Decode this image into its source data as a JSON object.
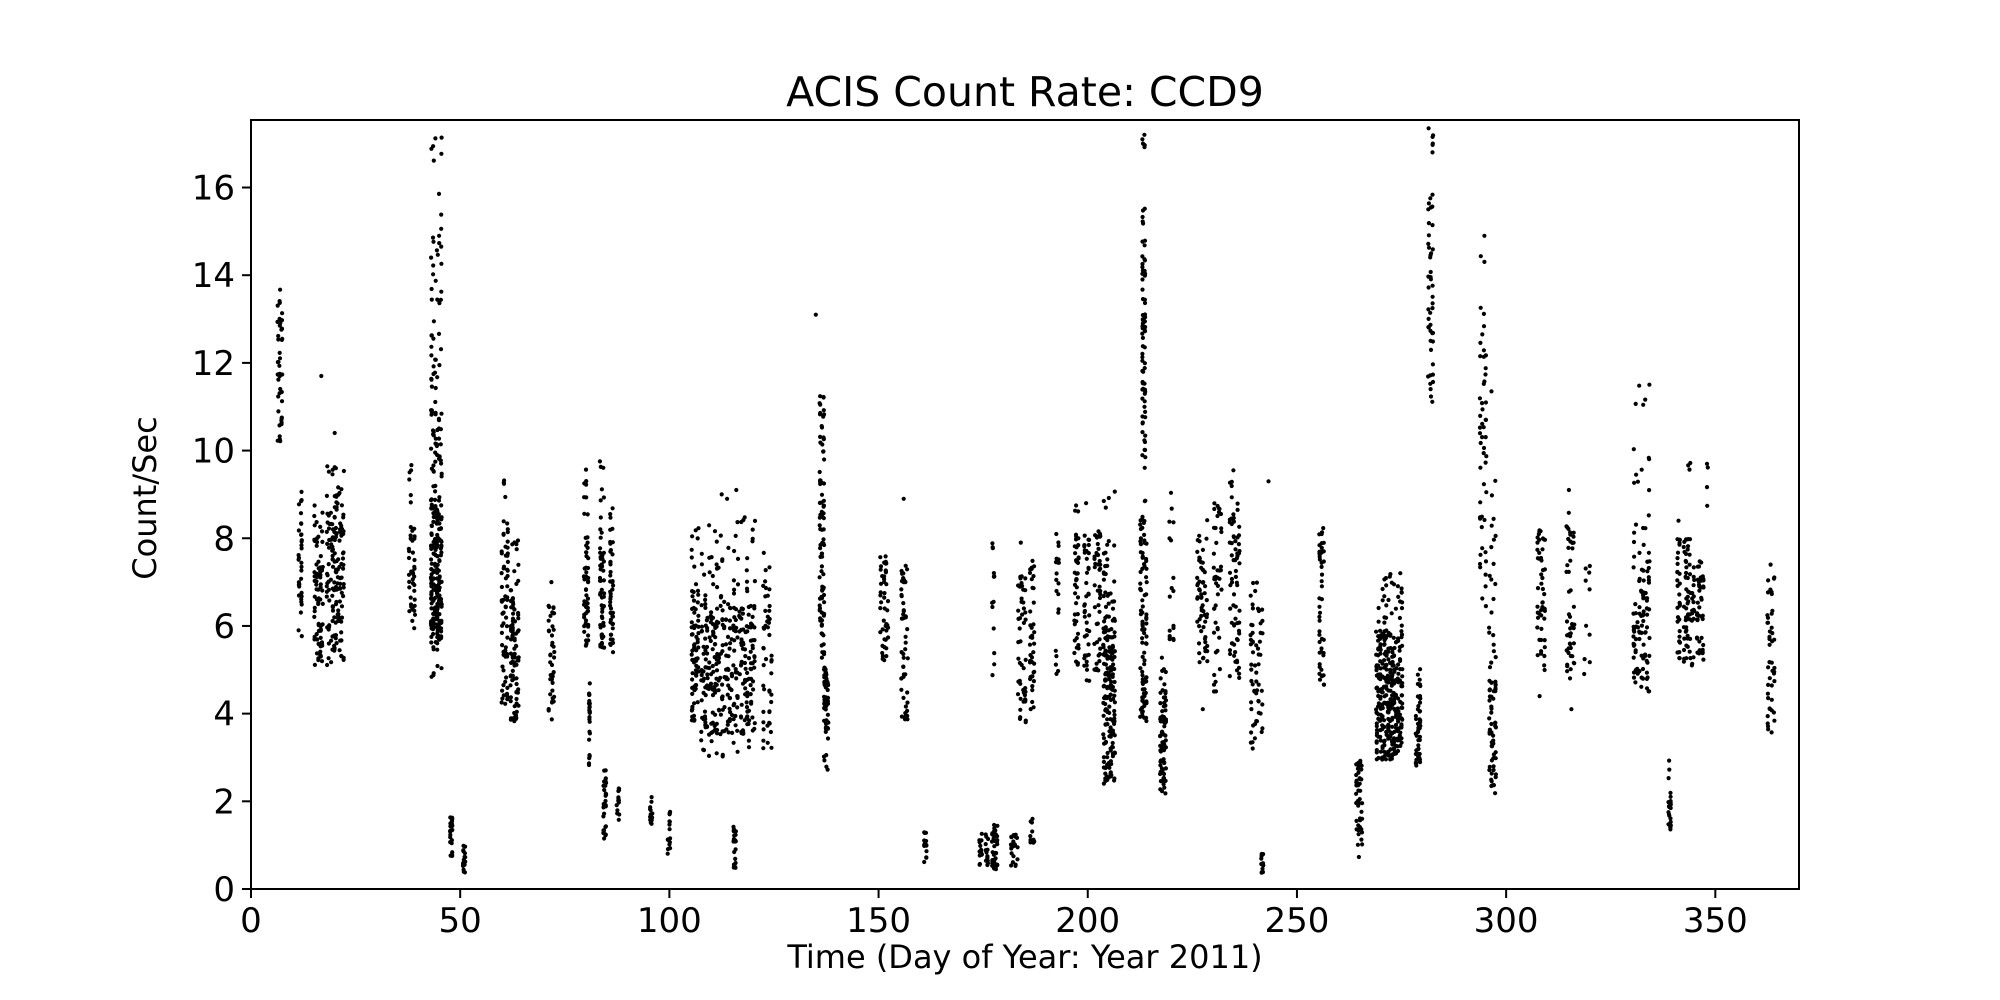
{
  "chart_data": {
    "type": "scatter",
    "title": "ACIS Count Rate: CCD9",
    "xlabel": "Time (Day of Year: Year 2011)",
    "ylabel": "Count/Sec",
    "xlim": [
      0,
      370
    ],
    "ylim": [
      0,
      17.54
    ],
    "xticks": [
      0,
      50,
      100,
      150,
      200,
      250,
      300,
      350
    ],
    "yticks": [
      0,
      2,
      4,
      6,
      8,
      10,
      12,
      14,
      16
    ],
    "grid": false,
    "legend": null,
    "marker_color": "#000000",
    "background_color": "#ffffff",
    "clusters": [
      {
        "d": [
          6.2,
          7.6
        ],
        "v": [
          [
            10.2,
            13.0,
            40
          ],
          [
            13.0,
            13.7,
            6
          ]
        ]
      },
      {
        "d": [
          11.2,
          12.3
        ],
        "v": [
          [
            5.6,
            8.4,
            30
          ],
          [
            8.5,
            9.2,
            5
          ]
        ]
      },
      {
        "d": [
          15.0,
          17.3
        ],
        "v": [
          [
            5.1,
            8.0,
            70
          ],
          [
            8.0,
            8.8,
            8
          ]
        ]
      },
      {
        "d": [
          18.0,
          22.3
        ],
        "v": [
          [
            5.1,
            9.0,
            150
          ],
          [
            9.0,
            9.7,
            10
          ]
        ]
      },
      {
        "d": [
          37.6,
          39.3
        ],
        "v": [
          [
            5.9,
            8.3,
            40
          ],
          [
            8.6,
            9.8,
            6
          ]
        ]
      },
      {
        "d": [
          42.9,
          45.7
        ],
        "v": [
          [
            5.6,
            8.7,
            190
          ],
          [
            8.7,
            10.5,
            40
          ],
          [
            10.5,
            13.0,
            30
          ],
          [
            13.0,
            16.1,
            22
          ],
          [
            16.4,
            17.3,
            6
          ],
          [
            4.8,
            5.6,
            8
          ]
        ]
      },
      {
        "d": [
          47.5,
          48.2
        ],
        "v": [
          [
            0.75,
            1.65,
            24
          ]
        ]
      },
      {
        "d": [
          50.6,
          51.3
        ],
        "v": [
          [
            0.35,
            1.0,
            20
          ]
        ]
      },
      {
        "d": [
          59.8,
          61.5
        ],
        "v": [
          [
            4.1,
            7.8,
            55
          ],
          [
            7.8,
            8.6,
            8
          ],
          [
            8.9,
            9.6,
            4
          ]
        ]
      },
      {
        "d": [
          61.9,
          64.1
        ],
        "v": [
          [
            3.8,
            7.0,
            85
          ],
          [
            7.0,
            8.2,
            8
          ]
        ]
      },
      {
        "d": [
          71.0,
          72.6
        ],
        "v": [
          [
            3.8,
            6.6,
            40
          ]
        ]
      },
      {
        "d": [
          79.5,
          80.7
        ],
        "v": [
          [
            5.5,
            8.0,
            45
          ],
          [
            8.0,
            9.6,
            10
          ]
        ]
      },
      {
        "d": [
          80.6,
          81.2
        ],
        "v": [
          [
            2.8,
            4.7,
            25
          ]
        ]
      },
      {
        "d": [
          83.3,
          84.5
        ],
        "v": [
          [
            5.5,
            7.8,
            45
          ],
          [
            7.8,
            9.8,
            10
          ]
        ]
      },
      {
        "d": [
          84.1,
          85.0
        ],
        "v": [
          [
            1.1,
            2.75,
            30
          ]
        ]
      },
      {
        "d": [
          85.7,
          86.7
        ],
        "v": [
          [
            5.4,
            8.0,
            40
          ],
          [
            8.0,
            8.7,
            5
          ]
        ]
      },
      {
        "d": [
          87.3,
          88.1
        ],
        "v": [
          [
            1.45,
            2.3,
            14
          ]
        ]
      },
      {
        "d": [
          95.3,
          96.0
        ],
        "v": [
          [
            1.05,
            2.1,
            14
          ]
        ]
      },
      {
        "d": [
          99.5,
          100.3
        ],
        "v": [
          [
            0.6,
            1.8,
            16
          ]
        ]
      },
      {
        "d": [
          105.2,
          107.1
        ],
        "v": [
          [
            3.8,
            6.9,
            65
          ],
          [
            6.9,
            8.3,
            8
          ]
        ]
      },
      {
        "d": [
          107.5,
          120.6
        ],
        "v": [
          [
            3.5,
            6.5,
            300
          ],
          [
            6.5,
            8.6,
            45
          ],
          [
            3.0,
            3.5,
            12
          ]
        ]
      },
      {
        "d": [
          115.2,
          116.0
        ],
        "v": [
          [
            0.45,
            1.65,
            20
          ]
        ]
      },
      {
        "d": [
          122.3,
          124.6
        ],
        "v": [
          [
            3.0,
            7.0,
            45
          ],
          [
            7.0,
            7.7,
            4
          ]
        ]
      },
      {
        "d": [
          135.8,
          137.1
        ],
        "v": [
          [
            5.2,
            11.3,
            90
          ]
        ]
      },
      {
        "d": [
          136.8,
          138.1
        ],
        "v": [
          [
            3.6,
            5.1,
            55
          ],
          [
            2.4,
            3.6,
            7
          ]
        ]
      },
      {
        "d": [
          150.3,
          152.4
        ],
        "v": [
          [
            5.2,
            7.6,
            45
          ]
        ]
      },
      {
        "d": [
          155.3,
          157.1
        ],
        "v": [
          [
            3.7,
            7.4,
            50
          ]
        ]
      },
      {
        "d": [
          160.8,
          161.6
        ],
        "v": [
          [
            0.6,
            1.3,
            16
          ]
        ]
      },
      {
        "d": [
          174.0,
          174.8
        ],
        "v": [
          [
            0.55,
            1.35,
            14
          ]
        ]
      },
      {
        "d": [
          175.5,
          176.3
        ],
        "v": [
          [
            0.5,
            1.3,
            14
          ]
        ]
      },
      {
        "d": [
          177.0,
          178.6
        ],
        "v": [
          [
            0.45,
            1.5,
            40
          ]
        ]
      },
      {
        "d": [
          177.0,
          177.8
        ],
        "v": [
          [
            4.6,
            8.1,
            14
          ]
        ]
      },
      {
        "d": [
          181.5,
          183.4
        ],
        "v": [
          [
            0.5,
            1.25,
            22
          ]
        ]
      },
      {
        "d": [
          183.2,
          185.3
        ],
        "v": [
          [
            3.8,
            7.2,
            50
          ]
        ]
      },
      {
        "d": [
          186.1,
          187.3
        ],
        "v": [
          [
            4.0,
            7.5,
            40
          ],
          [
            1.0,
            1.62,
            12
          ]
        ]
      },
      {
        "d": [
          192.2,
          193.3
        ],
        "v": [
          [
            4.7,
            8.3,
            20
          ]
        ]
      },
      {
        "d": [
          196.7,
          197.9
        ],
        "v": [
          [
            5.1,
            8.2,
            40
          ],
          [
            8.4,
            8.8,
            3
          ]
        ]
      },
      {
        "d": [
          199.0,
          200.5
        ],
        "v": [
          [
            4.7,
            8.1,
            40
          ]
        ]
      },
      {
        "d": [
          201.5,
          203.1
        ],
        "v": [
          [
            4.9,
            8.2,
            45
          ]
        ]
      },
      {
        "d": [
          203.6,
          206.6
        ],
        "v": [
          [
            3.3,
            6.2,
            130
          ],
          [
            2.4,
            3.3,
            35
          ],
          [
            6.2,
            8.0,
            25
          ],
          [
            8.7,
            9.2,
            4
          ]
        ]
      },
      {
        "d": [
          212.4,
          214.2
        ],
        "v": [
          [
            3.7,
            8.6,
            90
          ]
        ]
      },
      {
        "d": [
          212.9,
          213.9
        ],
        "v": [
          [
            10.1,
            14.9,
            65
          ],
          [
            15.1,
            15.8,
            5
          ],
          [
            16.6,
            17.3,
            5
          ],
          [
            8.8,
            10.1,
            7
          ]
        ]
      },
      {
        "d": [
          217.2,
          218.8
        ],
        "v": [
          [
            2.4,
            4.7,
            70
          ],
          [
            2.1,
            2.4,
            5
          ],
          [
            4.7,
            5.3,
            5
          ]
        ]
      },
      {
        "d": [
          219.3,
          220.7
        ],
        "v": [
          [
            5.6,
            7.1,
            12
          ],
          [
            7.5,
            9.1,
            6
          ]
        ]
      },
      {
        "d": [
          226.0,
          228.7
        ],
        "v": [
          [
            5.1,
            7.8,
            55
          ],
          [
            7.9,
            8.6,
            5
          ]
        ]
      },
      {
        "d": [
          230.0,
          232.1
        ],
        "v": [
          [
            4.5,
            8.8,
            45
          ]
        ]
      },
      {
        "d": [
          233.8,
          236.4
        ],
        "v": [
          [
            4.7,
            9.3,
            70
          ]
        ]
      },
      {
        "d": [
          238.8,
          241.9
        ],
        "v": [
          [
            3.2,
            6.5,
            55
          ],
          [
            6.6,
            7.0,
            4
          ]
        ]
      },
      {
        "d": [
          241.3,
          242.0
        ],
        "v": [
          [
            0.35,
            0.8,
            12
          ]
        ]
      },
      {
        "d": [
          255.2,
          256.6
        ],
        "v": [
          [
            4.6,
            7.9,
            45
          ],
          [
            8.0,
            8.3,
            4
          ]
        ]
      },
      {
        "d": [
          264.0,
          265.7
        ],
        "v": [
          [
            1.0,
            2.95,
            45
          ]
        ]
      },
      {
        "d": [
          268.8,
          275.3
        ],
        "v": [
          [
            2.95,
            5.9,
            300
          ],
          [
            5.9,
            7.3,
            30
          ]
        ]
      },
      {
        "d": [
          278.3,
          279.6
        ],
        "v": [
          [
            2.8,
            5.1,
            50
          ]
        ]
      },
      {
        "d": [
          281.2,
          282.7
        ],
        "v": [
          [
            11.1,
            14.2,
            30
          ],
          [
            14.2,
            16.0,
            15
          ],
          [
            16.6,
            17.45,
            6
          ]
        ]
      },
      {
        "d": [
          293.6,
          295.4
        ],
        "v": [
          [
            6.4,
            9.5,
            18
          ],
          [
            9.5,
            12.5,
            28
          ],
          [
            12.6,
            13.3,
            4
          ],
          [
            14.3,
            15.4,
            3
          ]
        ]
      },
      {
        "d": [
          295.8,
          297.7
        ],
        "v": [
          [
            2.15,
            5.1,
            55
          ],
          [
            5.1,
            9.5,
            20
          ]
        ]
      },
      {
        "d": [
          307.3,
          309.4
        ],
        "v": [
          [
            4.9,
            8.4,
            50
          ]
        ]
      },
      {
        "d": [
          314.3,
          316.4
        ],
        "v": [
          [
            4.7,
            8.7,
            50
          ]
        ]
      },
      {
        "d": [
          318.5,
          320.1
        ],
        "v": [
          [
            4.9,
            7.7,
            10
          ]
        ]
      },
      {
        "d": [
          330.3,
          334.4
        ],
        "v": [
          [
            4.5,
            7.9,
            90
          ],
          [
            7.9,
            10.3,
            14
          ],
          [
            10.8,
            11.65,
            5
          ]
        ]
      },
      {
        "d": [
          338.7,
          339.5
        ],
        "v": [
          [
            1.25,
            2.2,
            20
          ],
          [
            2.4,
            2.95,
            3
          ]
        ]
      },
      {
        "d": [
          340.8,
          341.7
        ],
        "v": [
          [
            5.2,
            8.0,
            30
          ]
        ]
      },
      {
        "d": [
          342.3,
          345.1
        ],
        "v": [
          [
            5.1,
            8.0,
            70
          ],
          [
            9.4,
            9.8,
            3
          ]
        ]
      },
      {
        "d": [
          345.5,
          347.3
        ],
        "v": [
          [
            5.2,
            7.5,
            45
          ]
        ]
      },
      {
        "d": [
          347.8,
          348.4
        ],
        "v": [
          [
            8.6,
            9.9,
            4
          ]
        ]
      },
      {
        "d": [
          362.3,
          364.3
        ],
        "v": [
          [
            3.5,
            7.2,
            45
          ]
        ]
      }
    ],
    "points": [
      [
        16.8,
        11.7
      ],
      [
        20.0,
        10.4
      ],
      [
        71.8,
        7.0
      ],
      [
        112.5,
        9.0
      ],
      [
        116.0,
        9.1
      ],
      [
        113.8,
        8.9
      ],
      [
        135.0,
        13.1
      ],
      [
        156.0,
        8.9
      ],
      [
        184.0,
        7.9
      ],
      [
        199.6,
        8.8
      ],
      [
        227.5,
        4.1
      ],
      [
        234.8,
        9.55
      ],
      [
        243.2,
        9.3
      ],
      [
        264.8,
        0.73
      ],
      [
        296.5,
        11.35
      ],
      [
        308.0,
        4.4
      ],
      [
        315.0,
        9.1
      ],
      [
        315.6,
        4.1
      ],
      [
        341.2,
        8.4
      ],
      [
        363.2,
        7.4
      ]
    ]
  }
}
